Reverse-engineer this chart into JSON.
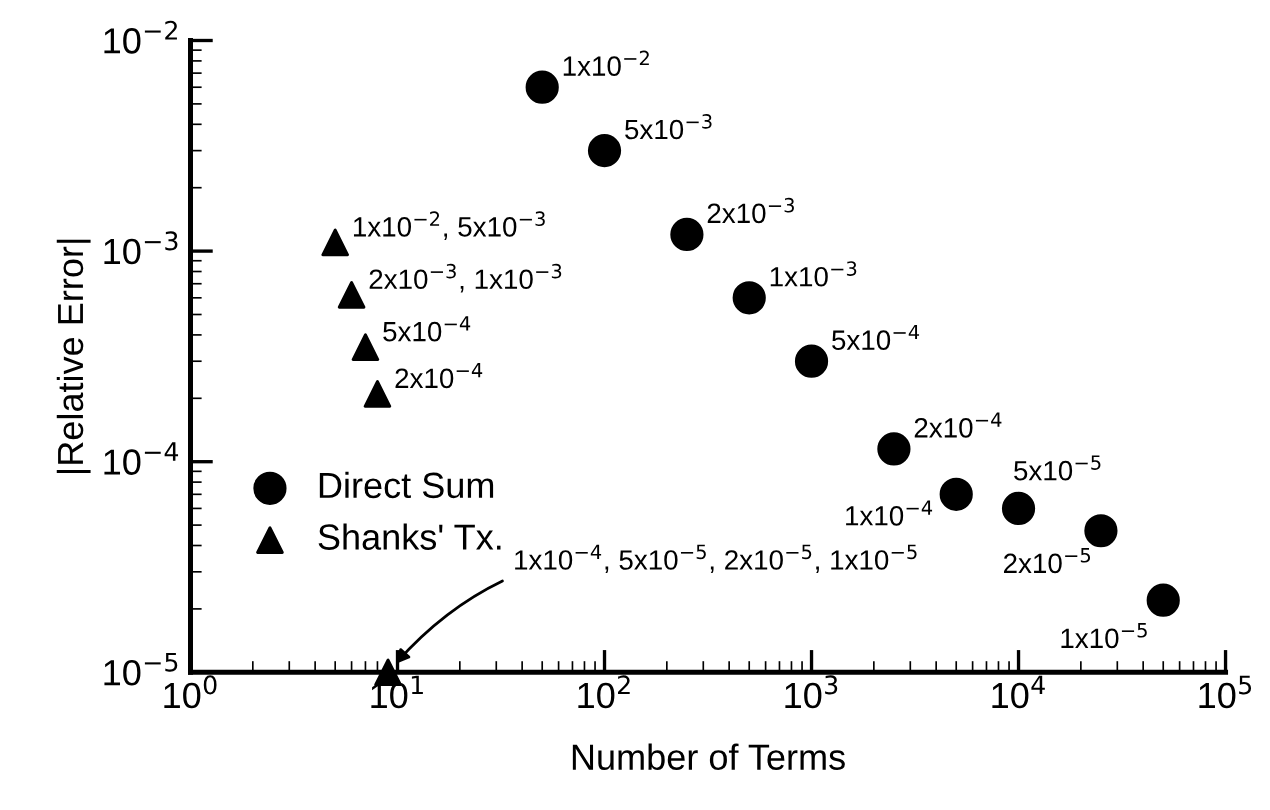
{
  "chart_data": {
    "type": "scatter",
    "xlabel": "Number of Terms",
    "ylabel": "|Relative Error|",
    "log": "xy",
    "grid": false,
    "legend": "center left",
    "xlim": [
      1,
      100000
    ],
    "ylim": [
      1e-05,
      0.01
    ],
    "xticks": [
      {
        "value": 1,
        "label": "10$^{0}$"
      },
      {
        "value": 10,
        "label": "10$^{1}$"
      },
      {
        "value": 100,
        "label": "10$^{2}$"
      },
      {
        "value": 1000,
        "label": "10$^{3}$"
      },
      {
        "value": 10000,
        "label": "10$^{4}$"
      },
      {
        "value": 100000,
        "label": "10$^{5}$"
      }
    ],
    "yticks": [
      {
        "value": 1e-05,
        "label": "10$^{−5}$"
      },
      {
        "value": 0.0001,
        "label": "10$^{−4}$"
      },
      {
        "value": 0.001,
        "label": "10$^{−3}$"
      },
      {
        "value": 0.01,
        "label": "10$^{−2}$"
      }
    ],
    "series": [
      {
        "name": "Direct Sum",
        "color": "#000000",
        "marker": "circle",
        "x": [
          50,
          100,
          250,
          500,
          1000,
          2500,
          5000,
          10000,
          25000,
          50000
        ],
        "values": [
          0.006,
          0.003,
          0.0012,
          0.0006,
          0.0003,
          0.000115,
          7e-05,
          6e-05,
          4.7e-05,
          2.2e-05
        ]
      },
      {
        "name": "Shanks' Tx.",
        "color": "#000000",
        "marker": "triangle",
        "x": [
          5,
          6,
          7,
          8,
          9
        ],
        "values": [
          0.0011,
          0.00062,
          0.00035,
          0.00021,
          1e-05
        ]
      }
    ],
    "annotations": [
      {
        "text": "1x10$^{−2}$",
        "x": 50,
        "y": 0.006
      },
      {
        "text": "5x10$^{−3}$",
        "x": 100,
        "y": 0.003
      },
      {
        "text": "2x10$^{−3}$",
        "x": 250,
        "y": 0.0012
      },
      {
        "text": "1x10$^{−3}$",
        "x": 500,
        "y": 0.0006
      },
      {
        "text": "5x10$^{−4}$",
        "x": 1000,
        "y": 0.0003
      },
      {
        "text": "2x10$^{−4}$",
        "x": 2500,
        "y": 0.000115
      },
      {
        "text": "1x10$^{−4}$",
        "x": 5000,
        "y": 7e-05
      },
      {
        "text": "5x10$^{−5}$",
        "x": 10000,
        "y": 6e-05
      },
      {
        "text": "2x10$^{−5}$",
        "x": 25000,
        "y": 4.7e-05
      },
      {
        "text": "1x10$^{−5}$",
        "x": 50000,
        "y": 2.2e-05
      },
      {
        "text": "1x10$^{−2}$, 5x10$^{−3}$",
        "x": 5,
        "y": 0.0011
      },
      {
        "text": "2x10$^{−3}$, 1x10$^{−3}$",
        "x": 6,
        "y": 0.00062
      },
      {
        "text": "5x10$^{−4}$",
        "x": 7,
        "y": 0.00035
      },
      {
        "text": "2x10$^{−4}$",
        "x": 8,
        "y": 0.00021
      },
      {
        "text": "1x10$^{−4}$, 5x10$^{−5}$, 2x10$^{−5}$, 1x10$^{−5}$",
        "x": 9,
        "y": 1e-05
      }
    ]
  }
}
